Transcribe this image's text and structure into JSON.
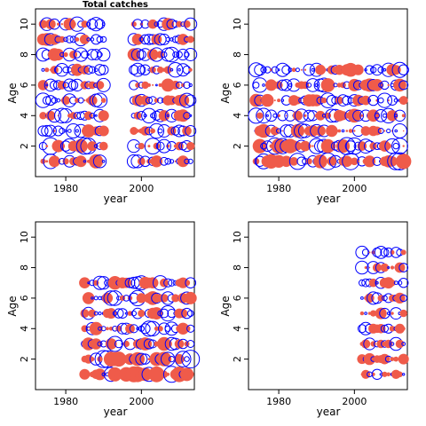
{
  "chart_data": [
    {
      "type": "scatter",
      "title": "Total catches",
      "xlabel": "year",
      "ylabel": "Age",
      "xlim": [
        1972,
        2014
      ],
      "ylim": [
        0,
        11
      ],
      "xticks": [
        1980,
        2000
      ],
      "yticks": [
        2,
        4,
        6,
        8,
        10
      ],
      "years": [
        1974,
        2013
      ],
      "ages": [
        1,
        10
      ],
      "bubble_scale": 1.0,
      "seed": 11
    },
    {
      "type": "scatter",
      "title": "",
      "xlabel": "year",
      "ylabel": "Age",
      "xlim": [
        1972,
        2014
      ],
      "ylim": [
        0,
        11
      ],
      "xticks": [
        1980,
        2000
      ],
      "yticks": [
        2,
        4,
        6,
        8,
        10
      ],
      "years": [
        1974,
        2013
      ],
      "ages": [
        1,
        7
      ],
      "bubble_scale": 1.05,
      "seed": 23
    },
    {
      "type": "scatter",
      "title": "",
      "xlabel": "year",
      "ylabel": "Age",
      "xlim": [
        1972,
        2014
      ],
      "ylim": [
        0,
        11
      ],
      "xticks": [
        1980,
        2000
      ],
      "yticks": [
        2,
        4,
        6,
        8,
        10
      ],
      "years": [
        1985,
        2013
      ],
      "ages": [
        1,
        7
      ],
      "bubble_scale": 1.05,
      "seed": 37
    },
    {
      "type": "scatter",
      "title": "",
      "xlabel": "year",
      "ylabel": "Age",
      "xlim": [
        1972,
        2014
      ],
      "ylim": [
        0,
        11
      ],
      "xticks": [
        1980,
        2000
      ],
      "yticks": [
        2,
        4,
        6,
        8,
        10
      ],
      "years": [
        2002,
        2013
      ],
      "ages": [
        1,
        9
      ],
      "bubble_scale": 0.9,
      "seed": 53
    }
  ],
  "colors": {
    "positive": "#0000ff",
    "negative": "#ef5b4a",
    "axis": "#000000"
  }
}
